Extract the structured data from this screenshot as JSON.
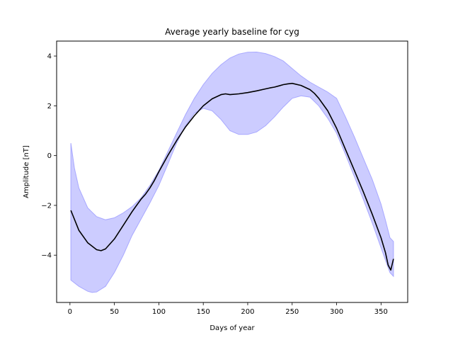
{
  "chart_data": {
    "type": "line",
    "title": "Average yearly baseline for cyg",
    "xlabel": "Days of year",
    "ylabel": "Amplitude [nT]",
    "xlim": [
      -15,
      380
    ],
    "ylim": [
      -5.9,
      4.6
    ],
    "xticks": [
      0,
      50,
      100,
      150,
      200,
      250,
      300,
      350
    ],
    "yticks": [
      -4,
      -2,
      0,
      2,
      4
    ],
    "grid": false,
    "colors": {
      "line": "#000000",
      "band_fill": "#ccccff",
      "band_edge": "#a8a8ff"
    },
    "series": [
      {
        "kind": "mean-line",
        "x": [
          1,
          10,
          20,
          30,
          35,
          40,
          50,
          60,
          70,
          75,
          80,
          85,
          90,
          95,
          100,
          110,
          120,
          130,
          140,
          150,
          160,
          170,
          175,
          180,
          190,
          200,
          210,
          220,
          225,
          230,
          235,
          240,
          245,
          250,
          260,
          270,
          275,
          280,
          285,
          290,
          295,
          300,
          310,
          320,
          330,
          340,
          350,
          355,
          358,
          361,
          364
        ],
        "y": [
          -2.2,
          -3.0,
          -3.5,
          -3.78,
          -3.82,
          -3.75,
          -3.35,
          -2.8,
          -2.25,
          -2.0,
          -1.75,
          -1.55,
          -1.3,
          -1.0,
          -0.65,
          0.0,
          0.6,
          1.15,
          1.6,
          2.0,
          2.28,
          2.45,
          2.48,
          2.45,
          2.48,
          2.53,
          2.6,
          2.68,
          2.72,
          2.75,
          2.8,
          2.85,
          2.88,
          2.9,
          2.82,
          2.65,
          2.5,
          2.3,
          2.05,
          1.8,
          1.45,
          1.1,
          0.25,
          -0.6,
          -1.45,
          -2.35,
          -3.3,
          -3.9,
          -4.4,
          -4.6,
          -4.15
        ]
      },
      {
        "kind": "band-upper",
        "x": [
          1,
          5,
          10,
          20,
          30,
          40,
          50,
          60,
          70,
          80,
          90,
          100,
          110,
          120,
          130,
          140,
          150,
          160,
          170,
          180,
          190,
          200,
          210,
          220,
          230,
          240,
          250,
          260,
          270,
          280,
          290,
          300,
          310,
          320,
          330,
          340,
          350,
          355,
          360,
          364
        ],
        "y": [
          0.5,
          -0.5,
          -1.3,
          -2.1,
          -2.45,
          -2.58,
          -2.5,
          -2.3,
          -2.05,
          -1.7,
          -1.2,
          -0.6,
          0.15,
          0.9,
          1.65,
          2.3,
          2.85,
          3.3,
          3.65,
          3.92,
          4.08,
          4.15,
          4.16,
          4.1,
          3.98,
          3.8,
          3.5,
          3.2,
          2.95,
          2.75,
          2.55,
          2.3,
          1.55,
          0.75,
          -0.1,
          -0.95,
          -1.95,
          -2.6,
          -3.3,
          -3.45
        ]
      },
      {
        "kind": "band-lower",
        "x": [
          1,
          10,
          20,
          25,
          30,
          40,
          50,
          60,
          70,
          80,
          90,
          100,
          110,
          120,
          130,
          140,
          150,
          160,
          170,
          180,
          190,
          200,
          210,
          220,
          230,
          240,
          250,
          260,
          270,
          280,
          290,
          300,
          310,
          320,
          330,
          340,
          350,
          355,
          360,
          364
        ],
        "y": [
          -5.0,
          -5.25,
          -5.45,
          -5.5,
          -5.48,
          -5.25,
          -4.7,
          -4.0,
          -3.2,
          -2.55,
          -1.9,
          -1.2,
          -0.35,
          0.5,
          1.2,
          1.7,
          1.9,
          1.8,
          1.45,
          1.0,
          0.85,
          0.85,
          0.95,
          1.2,
          1.55,
          1.95,
          2.3,
          2.4,
          2.35,
          2.0,
          1.5,
          0.9,
          0.05,
          -0.85,
          -1.75,
          -2.7,
          -3.7,
          -4.2,
          -4.7,
          -4.85
        ]
      }
    ]
  }
}
